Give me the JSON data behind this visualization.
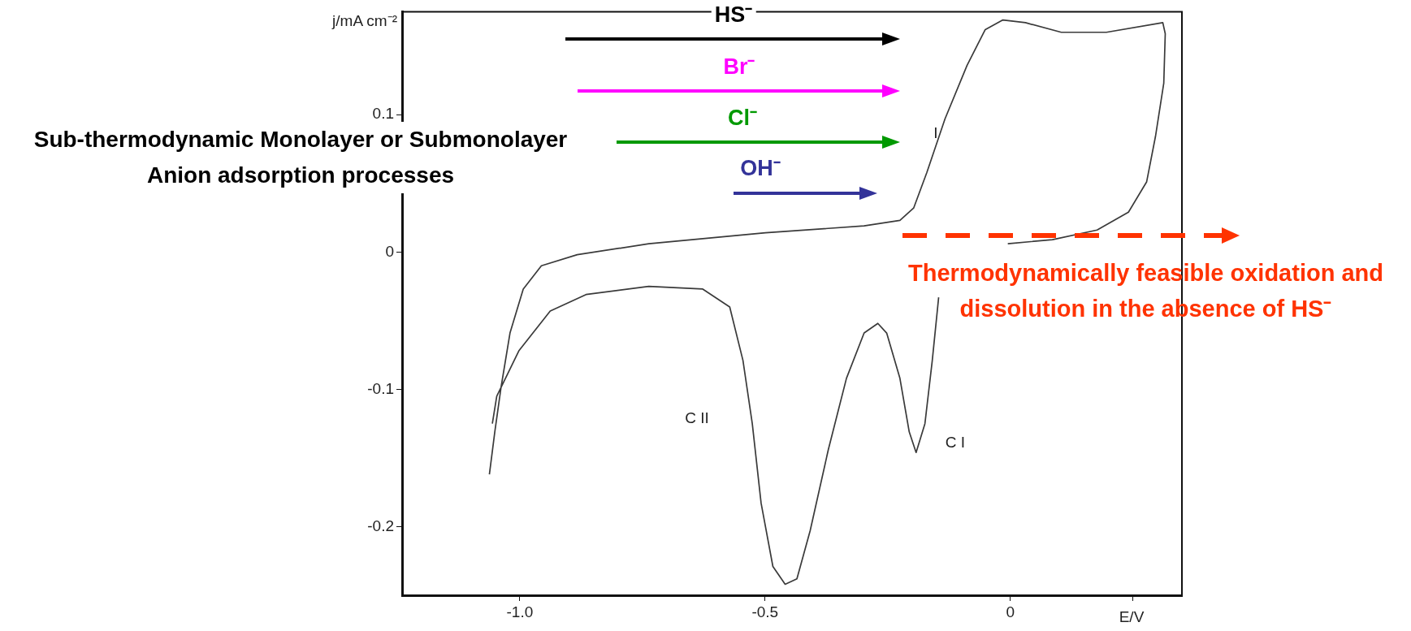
{
  "chart_data": {
    "type": "line",
    "xlabel": "E/V",
    "ylabel": "j/mA cm⁻²",
    "xlim": [
      -1.24,
      0.35
    ],
    "ylim": [
      -0.25,
      0.175
    ],
    "xticks": [
      {
        "value": -1,
        "label": "-1.0"
      },
      {
        "value": -0.5,
        "label": "-0.5"
      },
      0,
      {
        "value": 0.25,
        "label": null
      }
    ],
    "yticks": [
      {
        "value": 0.1,
        "label": "0.1"
      },
      0,
      {
        "value": -0.1,
        "label": "-0.1"
      },
      {
        "value": -0.2,
        "label": "-0.2"
      }
    ],
    "grid": false,
    "legend": false,
    "marker": "none",
    "line_style": "solid",
    "series": [
      {
        "color": "#3a3a3a",
        "x": [
          -1.062,
          -1.051,
          -1.038,
          -1.02,
          -0.993,
          -0.956,
          -0.883,
          -0.737,
          -0.499,
          -0.298,
          -0.225,
          -0.197,
          -0.17,
          -0.133,
          -0.088,
          -0.051,
          -0.015,
          0.031,
          0.104,
          0.196,
          0.311,
          0.316,
          0.313,
          0.296,
          0.278,
          0.241,
          0.177,
          0.086,
          -0.005,
          null,
          -0.146,
          -0.159,
          -0.174,
          -0.192,
          -0.206,
          -0.225,
          -0.252,
          -0.27,
          -0.298,
          -0.334,
          -0.371,
          -0.408,
          -0.435,
          -0.459,
          -0.484,
          -0.508,
          -0.526,
          -0.545,
          -0.572,
          -0.627,
          -0.737,
          -0.865,
          -0.938,
          -1.002,
          -1.047,
          -1.056
        ],
        "values": [
          -0.162,
          -0.131,
          -0.098,
          -0.059,
          -0.027,
          -0.01,
          -0.002,
          0.006,
          0.014,
          0.019,
          0.023,
          0.032,
          0.058,
          0.097,
          0.136,
          0.162,
          0.169,
          0.167,
          0.16,
          0.16,
          0.167,
          0.159,
          0.123,
          0.084,
          0.051,
          0.029,
          0.016,
          0.009,
          0.006,
          null,
          -0.033,
          -0.079,
          -0.125,
          -0.146,
          -0.131,
          -0.092,
          -0.059,
          -0.052,
          -0.059,
          -0.092,
          -0.144,
          -0.203,
          -0.238,
          -0.242,
          -0.229,
          -0.183,
          -0.125,
          -0.079,
          -0.04,
          -0.027,
          -0.025,
          -0.031,
          -0.043,
          -0.072,
          -0.105,
          -0.125
        ]
      }
    ],
    "annotations": [
      "Sub-thermodynamic Monolayer or Submonolayer Anion adsorption processes",
      "HS⁻",
      "Br⁻",
      "Cl⁻",
      "OH⁻",
      "Thermodynamically feasible oxidation and dissolution in the absence of HS⁻",
      "C II",
      "C I",
      "I"
    ]
  }
}
